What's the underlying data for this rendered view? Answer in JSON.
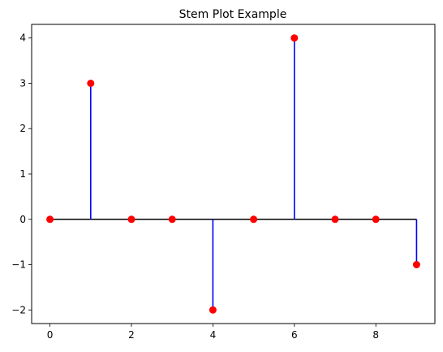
{
  "chart_data": {
    "type": "stem",
    "title": "Stem Plot Example",
    "xlabel": "",
    "ylabel": "",
    "x": [
      0,
      1,
      2,
      3,
      4,
      5,
      6,
      7,
      8,
      9
    ],
    "y": [
      0,
      3,
      0,
      0,
      -2,
      0,
      4,
      0,
      0,
      -1
    ],
    "baseline": 0,
    "xlim": [
      -0.45,
      9.45
    ],
    "ylim": [
      -2.3,
      4.3
    ],
    "xticks": [
      0,
      2,
      4,
      6,
      8
    ],
    "yticks": [
      -2,
      -1,
      0,
      1,
      2,
      3,
      4
    ],
    "ytick_labels": [
      "−2",
      "−1",
      "0",
      "1",
      "2",
      "3",
      "4"
    ],
    "colors": {
      "stem": "#0000ff",
      "marker": "#ff0000",
      "baseline": "#000000",
      "axes": "#000000"
    },
    "grid": false,
    "legend": false
  }
}
